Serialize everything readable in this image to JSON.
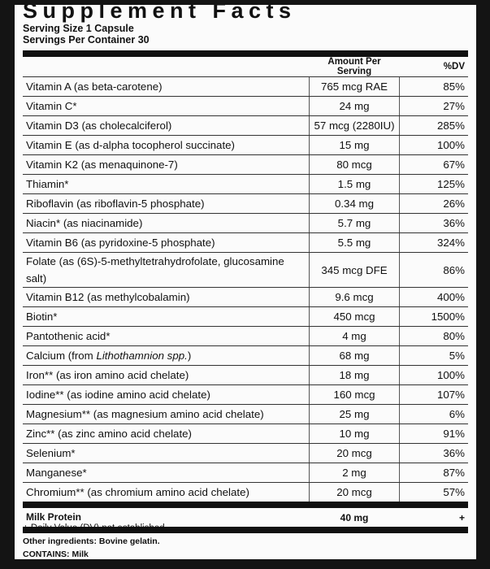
{
  "header": {
    "title": "Supplement Facts",
    "serving_size": "Serving Size 1 Capsule",
    "servings_per_container": "Servings Per Container 30"
  },
  "columns": {
    "amount": "Amount Per Serving",
    "dv": "%DV"
  },
  "rows": [
    {
      "name": "Vitamin A (as beta-carotene)",
      "amount": "765 mcg RAE",
      "dv": "85%"
    },
    {
      "name": "Vitamin C*",
      "amount": "24 mg",
      "dv": "27%"
    },
    {
      "name": "Vitamin D3 (as cholecalciferol)",
      "amount": "57 mcg (2280IU)",
      "dv": "285%"
    },
    {
      "name": "Vitamin E (as d-alpha tocopherol succinate)",
      "amount": "15 mg",
      "dv": "100%"
    },
    {
      "name": "Vitamin K2 (as menaquinone-7)",
      "amount": "80 mcg",
      "dv": "67%"
    },
    {
      "name": "Thiamin*",
      "amount": "1.5 mg",
      "dv": "125%"
    },
    {
      "name": "Riboflavin (as riboflavin-5 phosphate)",
      "amount": "0.34 mg",
      "dv": "26%"
    },
    {
      "name": "Niacin* (as niacinamide)",
      "amount": "5.7 mg",
      "dv": "36%"
    },
    {
      "name": "Vitamin B6 (as pyridoxine-5 phosphate)",
      "amount": "5.5 mg",
      "dv": "324%"
    },
    {
      "name": "Folate (as (6S)-5-methyltetrahydrofolate, glucosamine salt)",
      "amount": "345 mcg DFE",
      "dv": "86%"
    },
    {
      "name": "Vitamin B12 (as methylcobalamin)",
      "amount": "9.6 mcg",
      "dv": "400%"
    },
    {
      "name": "Biotin*",
      "amount": "450 mcg",
      "dv": "1500%"
    },
    {
      "name": "Pantothenic acid*",
      "amount": "4 mg",
      "dv": "80%"
    },
    {
      "name": "Calcium (from",
      "name_italic": "Lithothamnion spp.",
      "name_after": ")",
      "amount": "68 mg",
      "dv": "5%"
    },
    {
      "name": "Iron** (as iron amino acid chelate)",
      "amount": "18 mg",
      "dv": "100%"
    },
    {
      "name": "Iodine** (as iodine amino acid chelate)",
      "amount": "160 mcg",
      "dv": "107%"
    },
    {
      "name": "Magnesium** (as magnesium amino acid chelate)",
      "amount": "25 mg",
      "dv": "6%"
    },
    {
      "name": "Zinc** (as zinc amino acid chelate)",
      "amount": "10 mg",
      "dv": "91%"
    },
    {
      "name": "Selenium*",
      "amount": "20 mcg",
      "dv": "36%"
    },
    {
      "name": "Manganese*",
      "amount": "2 mg",
      "dv": "87%"
    },
    {
      "name": "Chromium** (as chromium amino acid chelate)",
      "amount": "20 mcg",
      "dv": "57%"
    }
  ],
  "milk": {
    "name": "Milk Protein",
    "amount": "40 mg",
    "dv": "+"
  },
  "footer": {
    "note": "+ Daily Value (DV) not established.",
    "other": "Other ingredients: Bovine gelatin.",
    "contains": "CONTAINS: Milk"
  }
}
